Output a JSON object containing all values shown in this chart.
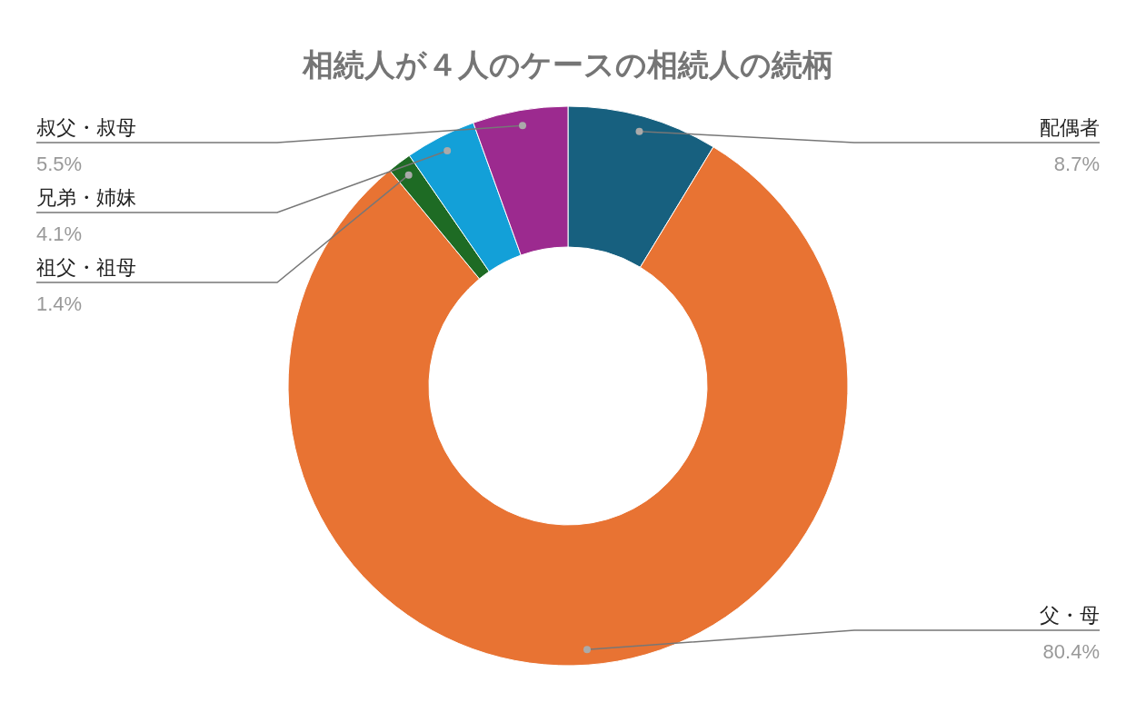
{
  "chart_data": {
    "type": "donut",
    "title": "相続人が４人のケースの相続人の続柄",
    "categories": [
      "配偶者",
      "父・母",
      "祖父・祖母",
      "兄弟・姉妹",
      "叔父・叔母"
    ],
    "values": [
      8.7,
      80.4,
      1.4,
      4.1,
      5.5
    ],
    "value_labels": [
      "8.7%",
      "80.4%",
      "1.4%",
      "4.1%",
      "5.5%"
    ],
    "colors": [
      "#17607f",
      "#e87333",
      "#1e6b24",
      "#13a0d8",
      "#9c2a8f"
    ]
  }
}
